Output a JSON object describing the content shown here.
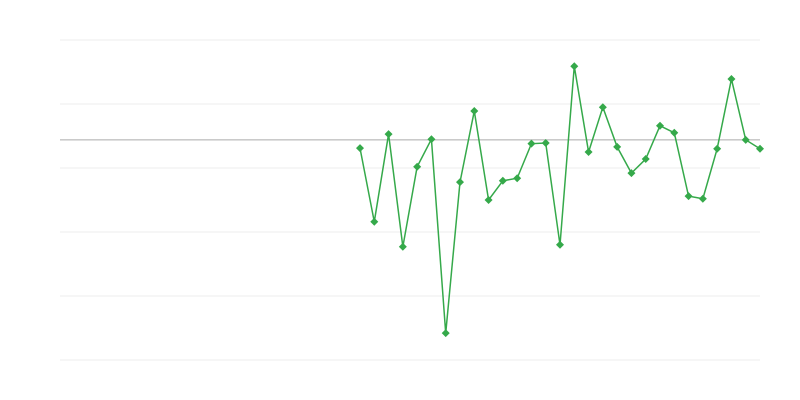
{
  "chart_data": {
    "type": "line",
    "x": [
      21,
      22,
      23,
      24,
      25,
      26,
      27,
      28,
      29,
      30,
      31,
      32,
      33,
      34,
      35,
      36,
      37,
      38,
      39,
      40,
      41,
      42,
      43,
      44,
      45,
      46,
      47,
      48,
      49
    ],
    "series": [
      {
        "color": "#35a94a",
        "values": [
          3.31,
          2.16,
          3.53,
          1.77,
          3.02,
          3.45,
          0.42,
          2.78,
          3.89,
          2.5,
          2.8,
          2.84,
          3.38,
          3.39,
          1.8,
          4.59,
          3.25,
          3.95,
          3.33,
          2.92,
          3.14,
          3.66,
          3.55,
          2.56,
          2.52,
          3.3,
          4.39,
          3.44,
          3.3
        ]
      }
    ],
    "xlim": [
      0,
      49
    ],
    "ylim": [
      0,
      5
    ],
    "yticks": [
      0,
      1,
      2,
      3,
      4,
      5
    ],
    "grid": true,
    "grid_color": "#eeeeee",
    "reference_line": 3.44,
    "reference_line_color": "#aaaaaa"
  }
}
